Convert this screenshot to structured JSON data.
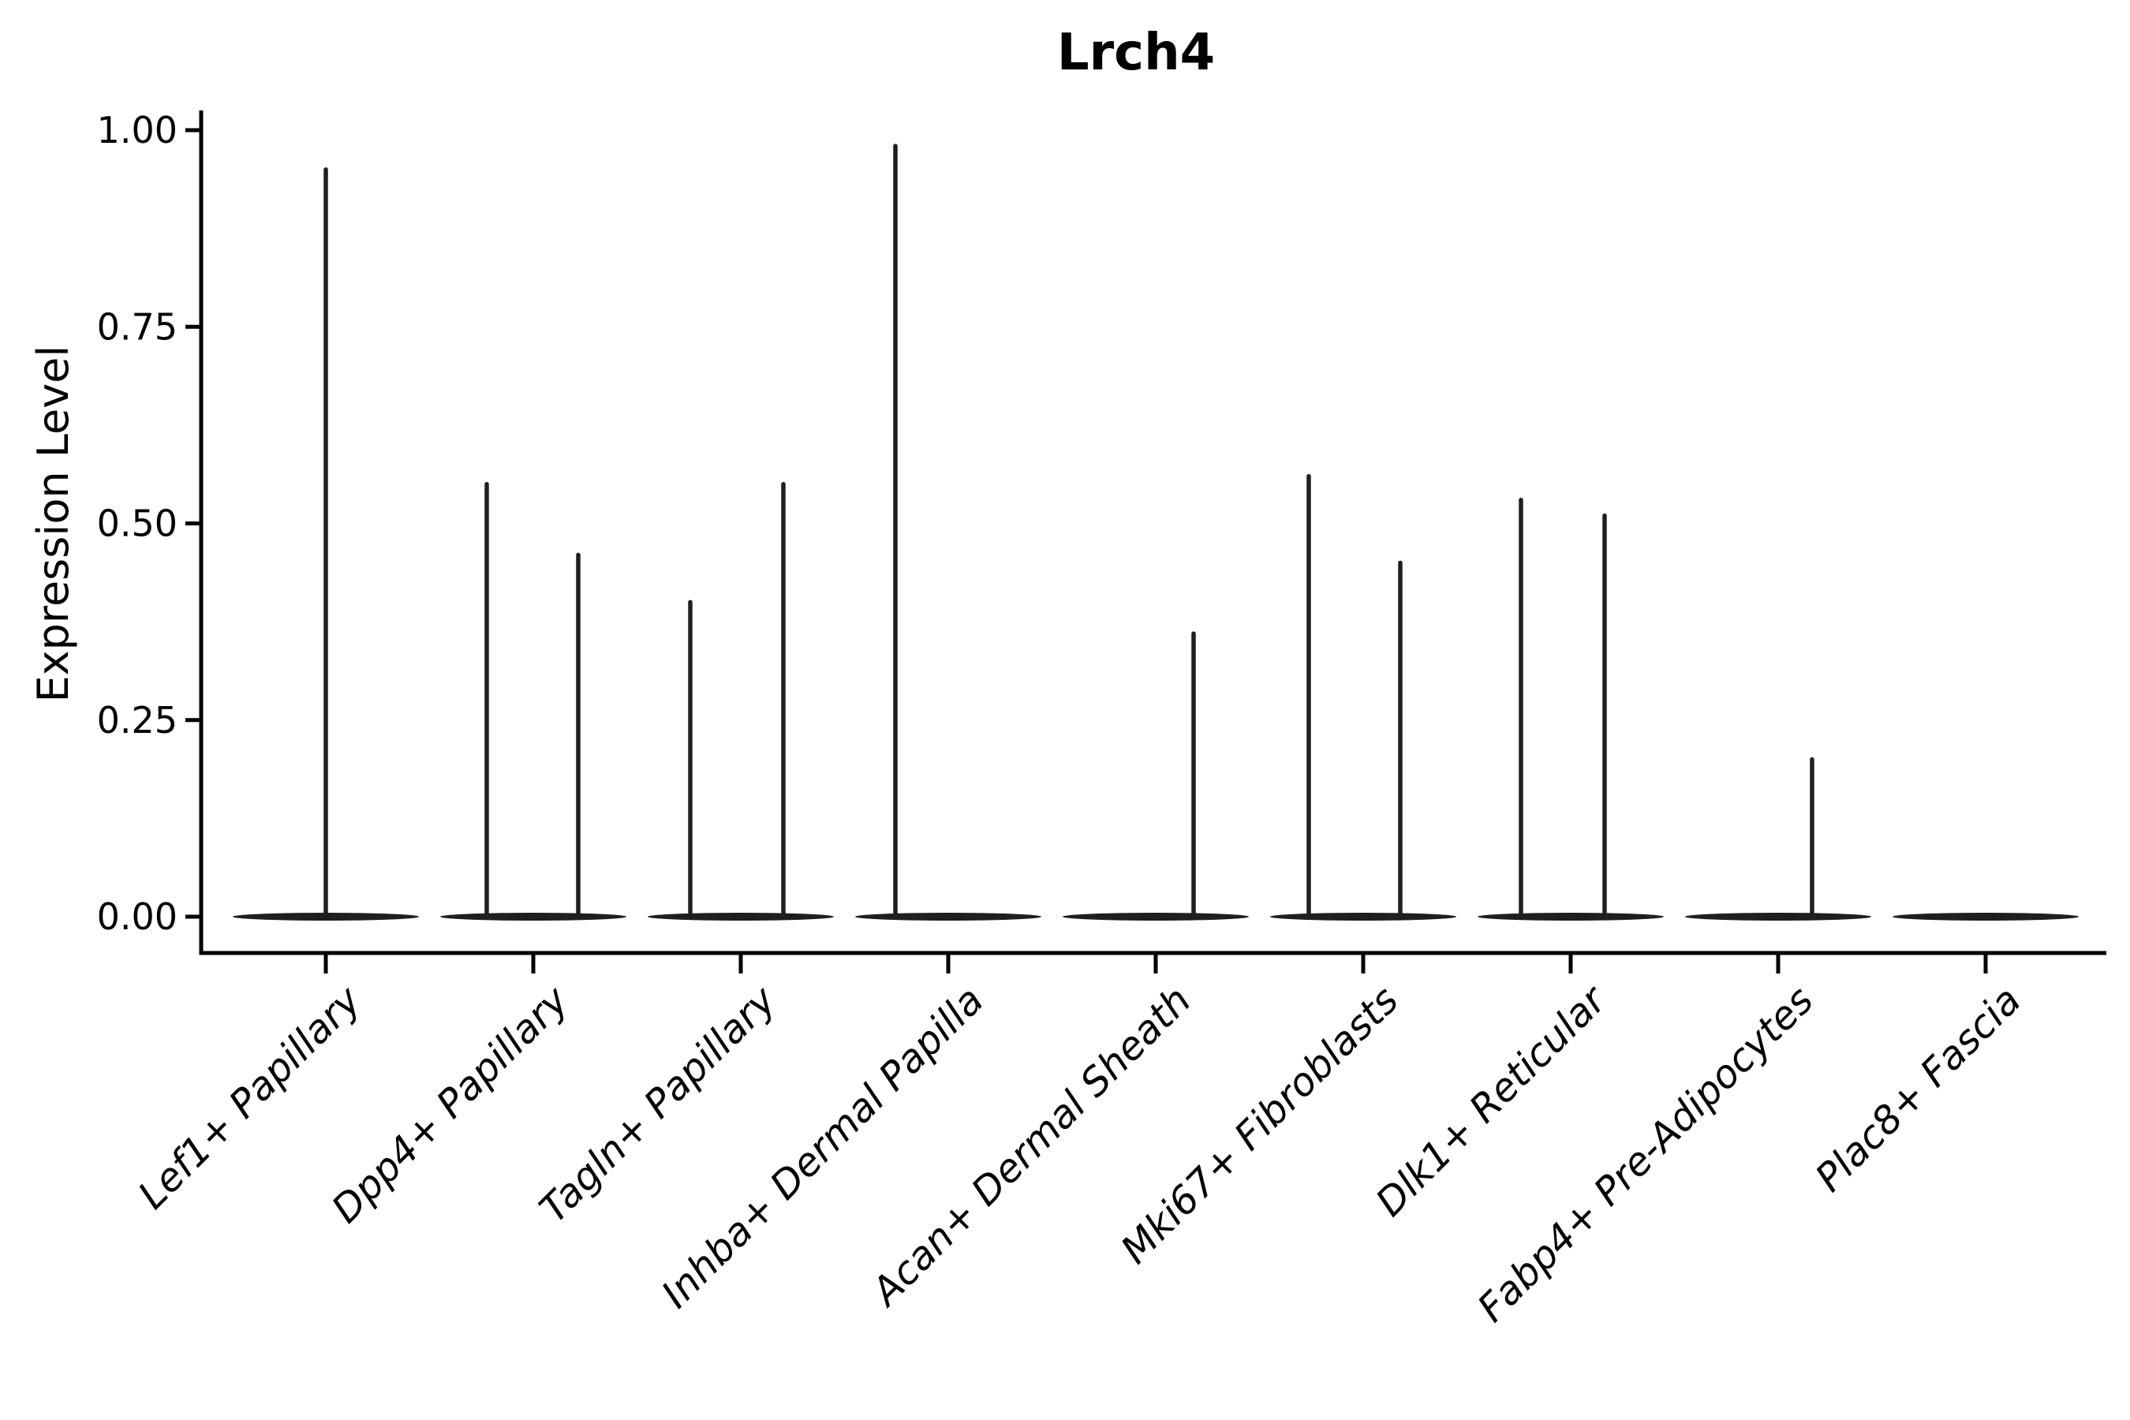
{
  "title": "Lrch4",
  "colors": {
    "background": "#ffffff",
    "axis": "#000000",
    "text": "#000000",
    "violin_stroke": "#1f1f1f"
  },
  "chart_data": {
    "type": "violin",
    "title": "Lrch4",
    "xlabel": "",
    "ylabel": "Expression Level",
    "ylim": [
      0,
      1.0
    ],
    "grid": "off",
    "legend": "none",
    "yticks": [
      0.0,
      0.25,
      0.5,
      0.75,
      1.0
    ],
    "ytick_labels": [
      "0.00",
      "0.25",
      "0.50",
      "0.75",
      "1.00"
    ],
    "categories": [
      "Lef1+ Papillary",
      "Dpp4+ Papillary",
      "Tagln+ Papillary",
      "Inhba+ Dermal Papilla",
      "Acan+ Dermal Sheath",
      "Mki67+ Fibroblasts",
      "Dlk1+ Reticular",
      "Fabp4+ Pre-Adipocytes",
      "Plac8+ Fascia"
    ],
    "violins": [
      {
        "label": "Lef1+ Papillary",
        "baseline_value": 0,
        "spikes": [
          {
            "dx": 0,
            "value": 0.95
          }
        ]
      },
      {
        "label": "Dpp4+ Papillary",
        "baseline_value": 0,
        "spikes": [
          {
            "dx": -59,
            "value": 0.55
          },
          {
            "dx": 57,
            "value": 0.46
          }
        ]
      },
      {
        "label": "Tagln+ Papillary",
        "baseline_value": 0,
        "spikes": [
          {
            "dx": -64,
            "value": 0.4
          },
          {
            "dx": 54,
            "value": 0.55
          }
        ]
      },
      {
        "label": "Inhba+ Dermal Papilla",
        "baseline_value": 0,
        "spikes": [
          {
            "dx": -67,
            "value": 0.98
          }
        ]
      },
      {
        "label": "Acan+ Dermal Sheath",
        "baseline_value": 0,
        "spikes": [
          {
            "dx": 48,
            "value": 0.36
          }
        ]
      },
      {
        "label": "Mki67+ Fibroblasts",
        "baseline_value": 0,
        "spikes": [
          {
            "dx": -69,
            "value": 0.56
          },
          {
            "dx": 47,
            "value": 0.45
          }
        ]
      },
      {
        "label": "Dlk1+ Reticular",
        "baseline_value": 0,
        "spikes": [
          {
            "dx": -63,
            "value": 0.53
          },
          {
            "dx": 43,
            "value": 0.51
          }
        ]
      },
      {
        "label": "Fabp4+ Pre-Adipocytes",
        "baseline_value": 0,
        "spikes": [
          {
            "dx": 43,
            "value": 0.2
          }
        ]
      },
      {
        "label": "Plac8+ Fascia",
        "baseline_value": 0,
        "spikes": []
      }
    ]
  }
}
